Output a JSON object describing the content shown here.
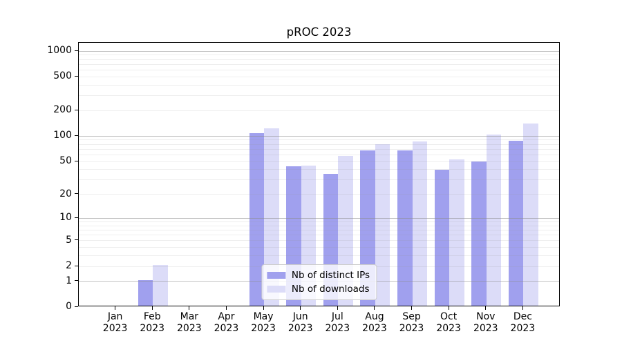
{
  "title": "pROC 2023",
  "chart_data": {
    "type": "bar",
    "title": "pROC 2023",
    "categories": [
      "Jan",
      "Feb",
      "Mar",
      "Apr",
      "May",
      "Jun",
      "Jul",
      "Aug",
      "Sep",
      "Oct",
      "Nov",
      "Dec"
    ],
    "category_year": "2023",
    "x_tick_labels": [
      "Jan 2023",
      "Feb 2023",
      "Mar 2023",
      "Apr 2023",
      "May 2023",
      "Jun 2023",
      "Jul 2023",
      "Aug 2023",
      "Sep 2023",
      "Oct 2023",
      "Nov 2023",
      "Dec 2023"
    ],
    "series": [
      {
        "name": "Nb of distinct IPs",
        "color": "#a0a0ee",
        "values": [
          0,
          1,
          0,
          0,
          105,
          42,
          34,
          65,
          65,
          38,
          48,
          85
        ]
      },
      {
        "name": "Nb of downloads",
        "color": "#dcdcf8",
        "values": [
          0,
          2,
          0,
          0,
          120,
          43,
          56,
          78,
          84,
          51,
          100,
          137
        ]
      }
    ],
    "yscale": "log1p",
    "ylim": [
      0,
      1258
    ],
    "y_ticks": [
      0,
      1,
      2,
      5,
      10,
      20,
      50,
      100,
      200,
      500,
      1000
    ],
    "y_major_gridlines": [
      1,
      10,
      100,
      1000
    ],
    "y_minor_gridlines": [
      2,
      3,
      4,
      5,
      6,
      7,
      8,
      9,
      20,
      30,
      40,
      50,
      60,
      70,
      80,
      90,
      200,
      300,
      400,
      500,
      600,
      700,
      800,
      900
    ],
    "grid": true,
    "legend_position": "lower center",
    "colors": {
      "axis": "#000000",
      "major_grid": "#8c8c8c",
      "minor_grid": "#e8e8e8",
      "background": "#ffffff"
    }
  }
}
